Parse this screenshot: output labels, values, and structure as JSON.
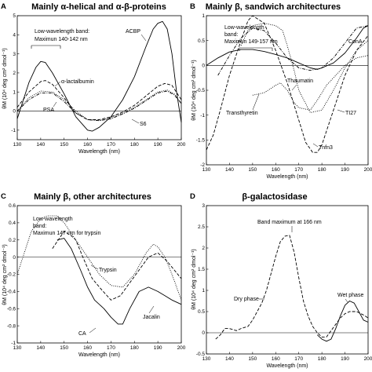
{
  "panels": [
    {
      "letter": "A",
      "title": "Mainly α-helical and α-β-proteins",
      "annotation": [
        "Low-wavelength band:",
        "Maximun 140-142 nm"
      ],
      "series_labels": [
        "ACBP",
        "α-lactalbumin",
        "PSA",
        "S6"
      ]
    },
    {
      "letter": "B",
      "title": "Mainly β, sandwich architectures",
      "annotation": [
        "Low-wavelength",
        "band:",
        "Maximun 149-157 nm"
      ],
      "series_labels": [
        "ConA",
        "Thaumatin",
        "Transthyretin",
        "TI27",
        "Tnfn3"
      ]
    },
    {
      "letter": "C",
      "title": "Mainly β, other architectures",
      "annotation": [
        "Low-wavelength",
        "band:",
        "Maximun 147 nm for trypsin"
      ],
      "series_labels": [
        "Trypsin",
        "CA",
        "Jacalin"
      ]
    },
    {
      "letter": "D",
      "title": "β-galactosidase",
      "annotation": [
        "Band maximum at 166 nm"
      ],
      "series_labels": [
        "Dry phase",
        "Wet phase"
      ]
    }
  ],
  "chart_data": [
    {
      "type": "line",
      "title": "Mainly α-helical and α-β-proteins",
      "xlabel": "Wavelength (nm)",
      "ylabel": "θM (10⁴ deg cm² dmol⁻¹)",
      "xlim": [
        130,
        200
      ],
      "ylim": [
        -1.5,
        5
      ],
      "xticks": [
        "130",
        "140",
        "150",
        "160",
        "170",
        "180",
        "190",
        "200"
      ],
      "yticks": [
        "-1",
        "0",
        "1",
        "2",
        "3",
        "4",
        "5"
      ],
      "series": [
        {
          "name": "ACBP",
          "style": "solid",
          "x": [
            130,
            135,
            138,
            140,
            142,
            145,
            150,
            155,
            160,
            162,
            165,
            170,
            175,
            180,
            185,
            188,
            190,
            192,
            194,
            196,
            198,
            200
          ],
          "y": [
            -0.4,
            1.5,
            2.3,
            2.6,
            2.55,
            2.0,
            0.9,
            -0.3,
            -1.0,
            -1.05,
            -0.85,
            -0.3,
            0.6,
            1.8,
            3.4,
            4.3,
            4.6,
            4.7,
            4.3,
            3.0,
            1.0,
            -0.6
          ]
        },
        {
          "name": "α-lactalbumin",
          "style": "dash",
          "x": [
            130,
            135,
            140,
            142,
            145,
            150,
            155,
            160,
            165,
            170,
            175,
            180,
            185,
            190,
            193,
            196,
            200
          ],
          "y": [
            0.2,
            1.0,
            1.55,
            1.6,
            1.4,
            0.7,
            -0.1,
            -0.45,
            -0.45,
            -0.3,
            -0.05,
            0.3,
            0.8,
            1.3,
            1.45,
            1.35,
            0.6
          ]
        },
        {
          "name": "PSA",
          "style": "dot",
          "x": [
            130,
            135,
            140,
            145,
            150,
            155,
            160,
            165,
            170,
            175,
            180,
            185,
            190,
            194,
            197,
            200
          ],
          "y": [
            0.0,
            0.7,
            1.05,
            1.0,
            0.6,
            0.0,
            -0.45,
            -0.5,
            -0.35,
            -0.1,
            0.2,
            0.6,
            1.0,
            1.1,
            0.9,
            0.4
          ]
        },
        {
          "name": "S6",
          "style": "dashdot",
          "x": [
            130,
            135,
            140,
            145,
            150,
            155,
            160,
            165,
            170,
            175,
            180,
            185,
            190,
            194,
            197,
            200
          ],
          "y": [
            0.0,
            0.6,
            0.95,
            0.95,
            0.5,
            -0.1,
            -0.45,
            -0.5,
            -0.4,
            -0.15,
            0.15,
            0.55,
            0.95,
            1.05,
            0.85,
            0.4
          ]
        }
      ]
    },
    {
      "type": "line",
      "title": "Mainly β, sandwich architectures",
      "xlabel": "Wavelength (nm)",
      "ylabel": "θM (10⁴ deg cm² dmol⁻¹)",
      "xlim": [
        130,
        200
      ],
      "ylim": [
        -2,
        1
      ],
      "xticks": [
        "130",
        "140",
        "150",
        "160",
        "170",
        "180",
        "190",
        "200"
      ],
      "yticks": [
        "-2",
        "-1.5",
        "-1",
        "-0.5",
        "0",
        "0.5",
        "1"
      ],
      "series": [
        {
          "name": "ConA",
          "style": "solid",
          "x": [
            130,
            135,
            140,
            145,
            150,
            155,
            160,
            165,
            170,
            175,
            178,
            180,
            185,
            190,
            195,
            198,
            200
          ],
          "y": [
            0.0,
            0.15,
            0.27,
            0.32,
            0.32,
            0.28,
            0.22,
            0.15,
            0.05,
            -0.05,
            -0.08,
            -0.05,
            0.05,
            0.25,
            0.55,
            0.75,
            0.8
          ]
        },
        {
          "name": "Thaumatin",
          "style": "dashdot",
          "x": [
            135,
            140,
            145,
            150,
            155,
            160,
            165,
            170,
            175,
            180,
            185,
            190,
            195,
            200
          ],
          "y": [
            -0.2,
            0.2,
            0.55,
            0.75,
            0.7,
            0.45,
            0.15,
            -0.05,
            -0.1,
            -0.05,
            0.15,
            0.45,
            0.75,
            0.8
          ]
        },
        {
          "name": "Transthyretin",
          "style": "dot",
          "x": [
            145,
            148,
            150,
            155,
            160,
            163,
            165,
            168,
            170,
            175,
            180,
            185,
            190,
            195,
            200
          ],
          "y": [
            0.4,
            0.7,
            0.8,
            0.85,
            0.8,
            0.7,
            0.4,
            -0.1,
            -0.5,
            -0.95,
            -0.9,
            -0.5,
            -0.05,
            0.3,
            0.5
          ]
        },
        {
          "name": "TI27",
          "style": "dot",
          "x": [
            150,
            155,
            160,
            162,
            165,
            168,
            170,
            175,
            178,
            182,
            186,
            190,
            195,
            200
          ],
          "y": [
            -0.6,
            -0.55,
            -0.4,
            -0.35,
            -0.5,
            -0.75,
            -0.85,
            -0.9,
            -0.7,
            -0.4,
            -0.2,
            0.0,
            0.15,
            0.2
          ]
        },
        {
          "name": "Tnfn3",
          "style": "dash",
          "x": [
            130,
            133,
            136,
            140,
            145,
            148,
            150,
            155,
            160,
            165,
            170,
            173,
            176,
            178,
            180,
            185,
            190,
            195,
            200
          ],
          "y": [
            -1.7,
            -1.4,
            -0.9,
            -0.2,
            0.5,
            0.9,
            1.0,
            0.85,
            0.3,
            -0.35,
            -1.1,
            -1.55,
            -1.75,
            -1.75,
            -1.6,
            -0.9,
            -0.2,
            0.3,
            0.6
          ]
        }
      ]
    },
    {
      "type": "line",
      "title": "Mainly β, other architectures",
      "xlabel": "Wavelength (nm)",
      "ylabel": "θM (10⁴ deg cm² dmol⁻¹)",
      "xlim": [
        130,
        200
      ],
      "ylim": [
        -1,
        0.6
      ],
      "xticks": [
        "130",
        "140",
        "150",
        "160",
        "170",
        "180",
        "190",
        "200"
      ],
      "yticks": [
        "-1",
        "-0.8",
        "-0.6",
        "-0.4",
        "-0.2",
        "0",
        "0.2",
        "0.4",
        "0.6"
      ],
      "series": [
        {
          "name": "Trypsin",
          "style": "dot",
          "x": [
            130,
            133,
            136,
            140,
            143,
            147,
            150,
            155,
            160,
            165,
            170,
            175,
            180,
            185,
            188,
            190,
            193,
            196,
            200
          ],
          "y": [
            -0.2,
            0.05,
            0.3,
            0.45,
            0.48,
            0.48,
            0.4,
            0.2,
            0.0,
            -0.2,
            -0.33,
            -0.35,
            -0.2,
            0.05,
            0.15,
            0.12,
            0.0,
            -0.2,
            -0.5
          ]
        },
        {
          "name": "CA",
          "style": "solid",
          "x": [
            147,
            150,
            153,
            157,
            160,
            163,
            167,
            170,
            173,
            175,
            178,
            182,
            186,
            190,
            193,
            196,
            200
          ],
          "y": [
            0.2,
            0.22,
            0.1,
            -0.15,
            -0.35,
            -0.5,
            -0.6,
            -0.7,
            -0.78,
            -0.78,
            -0.6,
            -0.4,
            -0.35,
            -0.4,
            -0.45,
            -0.5,
            -0.55
          ]
        },
        {
          "name": "Jacalin",
          "style": "dash",
          "x": [
            145,
            148,
            150,
            153,
            155,
            158,
            162,
            166,
            170,
            174,
            178,
            182,
            186,
            190,
            194,
            197,
            200
          ],
          "y": [
            0.1,
            0.22,
            0.3,
            0.25,
            0.2,
            0.0,
            -0.25,
            -0.38,
            -0.5,
            -0.45,
            -0.3,
            -0.15,
            0.0,
            0.05,
            -0.05,
            -0.15,
            -0.25
          ]
        }
      ]
    },
    {
      "type": "line",
      "title": "β-galactosidase",
      "xlabel": "Wavelength (nm)",
      "ylabel": "θM (10⁴ deg cm² dmol⁻¹)",
      "xlim": [
        130,
        200
      ],
      "ylim": [
        -0.5,
        3
      ],
      "xticks": [
        "130",
        "140",
        "150",
        "160",
        "170",
        "180",
        "190",
        "200"
      ],
      "yticks": [
        "-0.5",
        "0",
        "0.5",
        "1",
        "1.5",
        "2",
        "2.5",
        "3"
      ],
      "series": [
        {
          "name": "Dry phase",
          "style": "dash",
          "x": [
            134,
            136,
            138,
            140,
            143,
            145,
            148,
            150,
            152,
            154,
            156,
            158,
            160,
            162,
            164,
            166,
            168,
            170,
            172,
            174,
            176,
            178,
            180,
            182,
            184,
            186,
            188,
            190,
            192,
            195,
            198,
            200
          ],
          "y": [
            -0.15,
            -0.05,
            0.1,
            0.1,
            0.05,
            0.1,
            0.15,
            0.3,
            0.5,
            0.7,
            1.0,
            1.4,
            1.8,
            2.15,
            2.28,
            2.3,
            1.9,
            1.3,
            0.75,
            0.4,
            0.15,
            0.0,
            -0.1,
            -0.1,
            0.05,
            0.2,
            0.35,
            0.45,
            0.5,
            0.5,
            0.42,
            0.35
          ]
        },
        {
          "name": "Wet phase",
          "style": "solid",
          "x": [
            178,
            180,
            182,
            184,
            186,
            188,
            190,
            192,
            194,
            196,
            198,
            200
          ],
          "y": [
            -0.05,
            -0.15,
            -0.2,
            -0.15,
            0.1,
            0.4,
            0.65,
            0.75,
            0.7,
            0.5,
            0.3,
            0.25
          ]
        }
      ]
    }
  ]
}
